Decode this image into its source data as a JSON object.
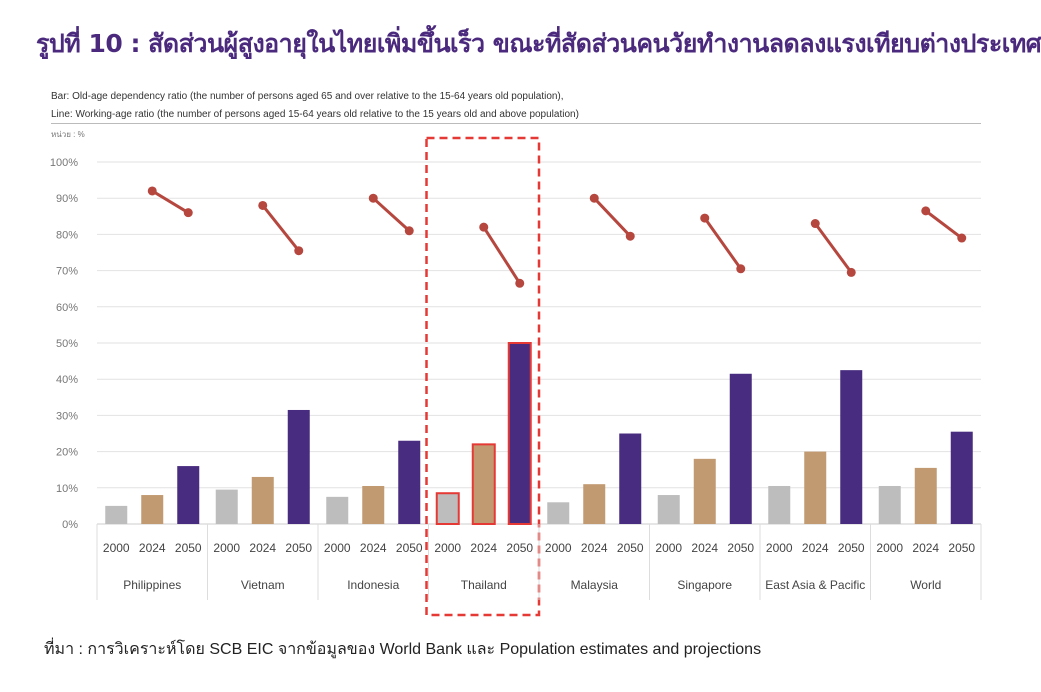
{
  "title": "รูปที่ 10 : สัดส่วนผู้สูงอายุในไทยเพิ่มขึ้นเร็ว ขณะที่สัดส่วนคนวัยทำงานลดลงแรงเทียบต่างประเทศ",
  "legend_bar": "Bar: Old-age dependency ratio (the number of persons aged 65 and over relative to the 15-64 years old population),",
  "legend_line": "Line: Working-age ratio (the number of persons aged 15-64 years old relative to the 15 years old and above population)",
  "unit": "หน่วย : %",
  "source": "ที่มา : การวิเคราะห์โดย SCB EIC จากข้อมูลของ World Bank และ Population estimates and projections",
  "chart_data": {
    "type": "bar",
    "ylim": [
      0,
      100
    ],
    "yticks": [
      "0%",
      "10%",
      "20%",
      "30%",
      "40%",
      "50%",
      "60%",
      "70%",
      "80%",
      "90%",
      "100%"
    ],
    "years": [
      "2000",
      "2024",
      "2050"
    ],
    "categories": [
      "Philippines",
      "Vietnam",
      "Indonesia",
      "Thailand",
      "Malaysia",
      "Singapore",
      "East Asia & Pacific",
      "World"
    ],
    "highlight": "Thailand",
    "bar_colors": [
      "#bdbdbd",
      "#c19a72",
      "#482c7f"
    ],
    "line_color": "#b5473f",
    "highlight_color": "#e53935",
    "bars": [
      [
        5,
        8,
        16
      ],
      [
        9.5,
        13,
        31.5
      ],
      [
        7.5,
        10.5,
        23
      ],
      [
        8.5,
        22,
        50
      ],
      [
        6,
        11,
        25
      ],
      [
        8,
        18,
        41.5
      ],
      [
        10.5,
        20,
        42.5
      ],
      [
        10.5,
        15.5,
        25.5
      ]
    ],
    "line": [
      [
        92,
        86
      ],
      [
        88,
        75.5
      ],
      [
        90,
        81
      ],
      [
        82,
        66.5
      ],
      [
        90,
        79.5
      ],
      [
        84.5,
        70.5
      ],
      [
        83,
        69.5
      ],
      [
        86.5,
        79
      ]
    ],
    "line_years": [
      "2024",
      "2050"
    ]
  }
}
